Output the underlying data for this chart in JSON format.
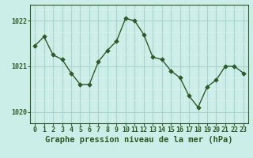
{
  "x": [
    0,
    1,
    2,
    3,
    4,
    5,
    6,
    7,
    8,
    9,
    10,
    11,
    12,
    13,
    14,
    15,
    16,
    17,
    18,
    19,
    20,
    21,
    22,
    23
  ],
  "y": [
    1021.45,
    1021.65,
    1021.25,
    1021.15,
    1020.85,
    1020.6,
    1020.6,
    1021.1,
    1021.35,
    1021.55,
    1022.05,
    1022.0,
    1021.7,
    1021.2,
    1021.15,
    1020.9,
    1020.75,
    1020.35,
    1020.1,
    1020.55,
    1020.7,
    1021.0,
    1021.0,
    1020.85
  ],
  "line_color": "#2d5a27",
  "marker_color": "#2d5a27",
  "bg_color": "#cceee8",
  "grid_color_major": "#aad4cc",
  "grid_color_minor": "#ddf0ec",
  "xlabel": "Graphe pression niveau de la mer (hPa)",
  "ylim": [
    1019.75,
    1022.35
  ],
  "yticks": [
    1020,
    1021,
    1022
  ],
  "xticks": [
    0,
    1,
    2,
    3,
    4,
    5,
    6,
    7,
    8,
    9,
    10,
    11,
    12,
    13,
    14,
    15,
    16,
    17,
    18,
    19,
    20,
    21,
    22,
    23
  ],
  "line_width": 1.0,
  "marker_size": 2.8,
  "tick_fontsize": 6.0,
  "label_fontsize": 7.5
}
